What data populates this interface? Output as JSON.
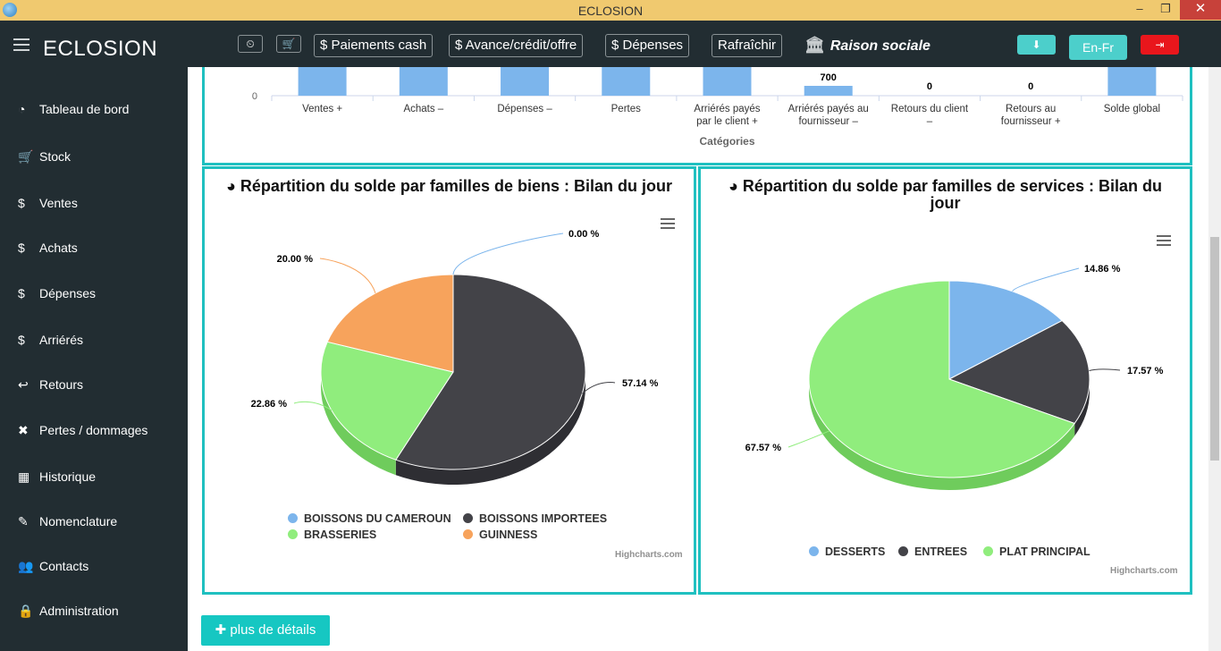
{
  "window": {
    "title": "ECLOSION",
    "minimize": "–",
    "restore": "❐",
    "close": "✕"
  },
  "navbar": {
    "brand": "ECLOSION",
    "dashboard_icon": "⏲",
    "cart_icon": "🛒",
    "buttons": [
      "$ Paiements cash",
      "$ Avance/crédit/offre",
      "$ Dépenses",
      "Rafraîchir"
    ],
    "company": "Raison sociale",
    "bank_icon": "🏛",
    "download_icon": "⬇",
    "lang": "En-Fr",
    "logout_icon": "⇥"
  },
  "sidebar": {
    "items": [
      {
        "label": "Tableau de bord",
        "icon": "◔"
      },
      {
        "label": "Stock",
        "icon": "🛒"
      },
      {
        "label": "Ventes",
        "icon": "$"
      },
      {
        "label": "Achats",
        "icon": "$"
      },
      {
        "label": "Dépenses",
        "icon": "$"
      },
      {
        "label": "Arriérés",
        "icon": "$"
      },
      {
        "label": "Retours",
        "icon": "↩"
      },
      {
        "label": "Pertes / dommages",
        "icon": "✖"
      },
      {
        "label": "Historique",
        "icon": "▦"
      },
      {
        "label": "Nomenclature",
        "icon": "✎"
      },
      {
        "label": "Contacts",
        "icon": "👥"
      },
      {
        "label": "Administration",
        "icon": "🔒"
      }
    ]
  },
  "colors": {
    "teal": "#1fc0c0",
    "blue": "#7cb5ec",
    "dark": "#434348",
    "green": "#90ed7d",
    "orange": "#f7a35c"
  },
  "chart_data": [
    {
      "type": "bar",
      "categories": [
        "Ventes +",
        "Achats –",
        "Dépenses –",
        "Pertes",
        "Arriérés payés par le client +",
        "Arriérés payés au fournisseur –",
        "Retours du client –",
        "Retours au fournisseur +",
        "Solde global"
      ],
      "data_labels": [
        "",
        "",
        "",
        "",
        "",
        "700",
        "0",
        "0",
        ""
      ],
      "y_tick": "0",
      "xlabel": "Catégories"
    },
    {
      "type": "pie",
      "title": "Répartition du solde par familles de biens : Bilan du jour",
      "slices": [
        {
          "name": "BOISSONS DU CAMEROUN",
          "value": 0.0,
          "label": "0.00 %"
        },
        {
          "name": "BOISSONS IMPORTEES",
          "value": 57.14,
          "label": "57.14 %"
        },
        {
          "name": "BRASSERIES",
          "value": 22.86,
          "label": "22.86 %"
        },
        {
          "name": "GUINNESS",
          "value": 20.0,
          "label": "20.00 %"
        }
      ],
      "credit": "Highcharts.com"
    },
    {
      "type": "pie",
      "title": "Répartition du solde par familles de services : Bilan du jour",
      "slices": [
        {
          "name": "DESSERTS",
          "value": 14.86,
          "label": "14.86 %"
        },
        {
          "name": "ENTREES",
          "value": 17.57,
          "label": "17.57 %"
        },
        {
          "name": "PLAT PRINCIPAL",
          "value": 67.57,
          "label": "67.57 %"
        }
      ],
      "credit": "Highcharts.com"
    }
  ],
  "details_button": "plus de détails",
  "details_icon": "✚"
}
